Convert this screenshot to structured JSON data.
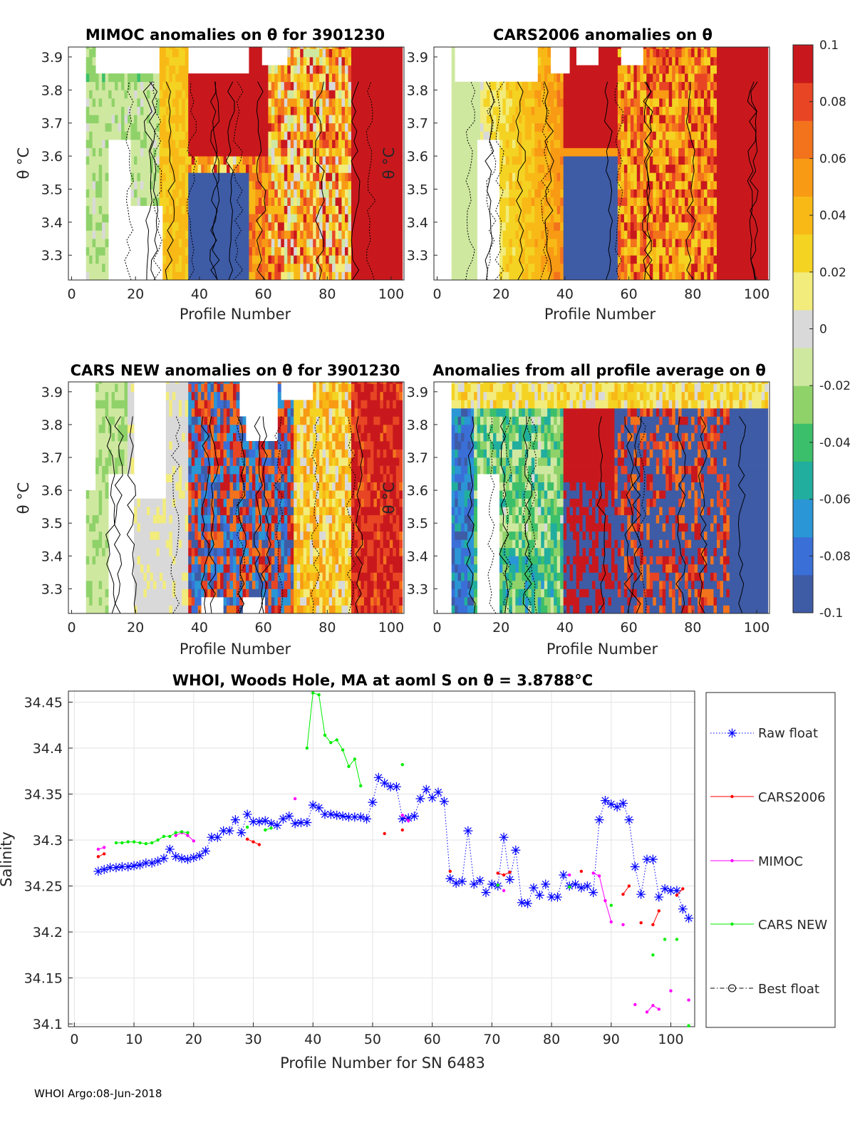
{
  "footer": "WHOI Argo:08-Jun-2018",
  "colorbar": {
    "ticks": [
      "0.1",
      "0.08",
      "0.06",
      "0.04",
      "0.02",
      "0",
      "-0.02",
      "-0.04",
      "-0.06",
      "-0.08",
      "-0.1"
    ],
    "clim": [
      -0.1,
      0.1
    ],
    "colors": [
      "#3e5ba6",
      "#3a6fd8",
      "#2a96d6",
      "#21ae9e",
      "#3cbf6a",
      "#8fd26a",
      "#cfe8a0",
      "#d9d9d9",
      "#f2ec7c",
      "#f4d323",
      "#f8b917",
      "#f89a14",
      "#f3731d",
      "#e84524",
      "#c9181d"
    ]
  },
  "chart_data": [
    {
      "type": "heatmap",
      "title": "MIMOC anomalies on θ  for 3901230",
      "xlabel": "Profile Number",
      "ylabel": "θ °C",
      "xlim": [
        -1,
        104
      ],
      "ylim": [
        3.225,
        3.93
      ],
      "xticks": [
        0,
        20,
        40,
        60,
        80,
        100
      ],
      "yticks": [
        3.3,
        3.4,
        3.5,
        3.6,
        3.7,
        3.8,
        3.9
      ],
      "variant": "mimoc",
      "seed": 11
    },
    {
      "type": "heatmap",
      "title": "CARS2006 anomalies on θ",
      "xlabel": "Profile Number",
      "ylabel": "θ °C",
      "xlim": [
        -1,
        104
      ],
      "ylim": [
        3.225,
        3.93
      ],
      "xticks": [
        0,
        20,
        40,
        60,
        80,
        100
      ],
      "yticks": [
        3.3,
        3.4,
        3.5,
        3.6,
        3.7,
        3.8,
        3.9
      ],
      "variant": "cars2006",
      "seed": 23
    },
    {
      "type": "heatmap",
      "title": "CARS NEW anomalies on θ for 3901230",
      "xlabel": "Profile Number",
      "ylabel": "θ °C",
      "xlim": [
        -1,
        104
      ],
      "ylim": [
        3.225,
        3.93
      ],
      "xticks": [
        0,
        20,
        40,
        60,
        80,
        100
      ],
      "yticks": [
        3.3,
        3.4,
        3.5,
        3.6,
        3.7,
        3.8,
        3.9
      ],
      "variant": "carsnew",
      "seed": 37
    },
    {
      "type": "heatmap",
      "title": "Anomalies from all profile average on θ",
      "xlabel": "Profile Number",
      "ylabel": "θ °C",
      "xlim": [
        -1,
        104
      ],
      "ylim": [
        3.225,
        3.93
      ],
      "xticks": [
        0,
        20,
        40,
        60,
        80,
        100
      ],
      "yticks": [
        3.3,
        3.4,
        3.5,
        3.6,
        3.7,
        3.8,
        3.9
      ],
      "variant": "allavg",
      "seed": 53
    },
    {
      "type": "line",
      "title": "WHOI, Woods Hole, MA at aoml S on θ = 3.8788°C",
      "xlabel": "Profile Number for SN 6483",
      "ylabel": "Salinity",
      "xlim": [
        -1,
        104
      ],
      "ylim": [
        34.097,
        34.462
      ],
      "xticks": [
        0,
        10,
        20,
        30,
        40,
        50,
        60,
        70,
        80,
        90,
        100
      ],
      "yticks": [
        34.1,
        34.15,
        34.2,
        34.25,
        34.3,
        34.35,
        34.4,
        34.45
      ],
      "legend": [
        "Raw float",
        "CARS2006",
        "MIMOC",
        "CARS NEW",
        "Best float"
      ],
      "series": [
        {
          "name": "Raw float",
          "x": [
            4,
            5,
            6,
            7,
            8,
            9,
            10,
            11,
            12,
            13,
            14,
            15,
            16,
            17,
            18,
            19,
            20,
            21,
            22,
            23,
            24,
            25,
            26,
            27,
            28,
            29,
            30,
            31,
            32,
            33,
            34,
            35,
            36,
            37,
            38,
            39,
            40,
            41,
            42,
            43,
            44,
            45,
            46,
            47,
            48,
            49,
            50,
            51,
            52,
            53,
            54,
            55,
            56,
            57,
            58,
            59,
            60,
            61,
            62,
            63,
            64,
            65,
            66,
            67,
            68,
            69,
            70,
            71,
            72,
            73,
            74,
            75,
            76,
            77,
            78,
            79,
            80,
            81,
            82,
            83,
            84,
            85,
            86,
            87,
            88,
            89,
            90,
            91,
            92,
            93,
            94,
            95,
            96,
            97,
            98,
            99,
            100,
            101,
            102,
            103
          ],
          "y": [
            34.266,
            34.268,
            34.27,
            34.27,
            34.271,
            34.271,
            34.272,
            34.273,
            34.275,
            34.275,
            34.277,
            34.28,
            34.29,
            34.282,
            34.28,
            34.279,
            34.281,
            34.283,
            34.288,
            34.303,
            34.303,
            34.31,
            34.31,
            34.322,
            34.308,
            34.328,
            34.32,
            34.32,
            34.321,
            34.318,
            34.316,
            34.323,
            34.326,
            34.318,
            34.319,
            34.319,
            34.338,
            34.335,
            34.328,
            34.328,
            34.327,
            34.326,
            34.325,
            34.325,
            34.325,
            34.323,
            34.341,
            34.368,
            34.362,
            34.358,
            34.358,
            34.323,
            34.324,
            34.326,
            34.345,
            34.355,
            34.346,
            34.352,
            34.342,
            34.258,
            34.253,
            34.255,
            34.31,
            34.252,
            34.256,
            34.243,
            34.252,
            34.25,
            34.303,
            34.257,
            34.289,
            34.232,
            34.231,
            34.248,
            34.24,
            34.252,
            34.238,
            34.238,
            34.262,
            34.25,
            34.252,
            34.248,
            34.25,
            34.243,
            34.322,
            34.343,
            34.339,
            34.336,
            34.34,
            34.322,
            34.271,
            34.241,
            34.279,
            34.279,
            34.238,
            34.247,
            34.245,
            34.245,
            34.225,
            34.215
          ]
        },
        {
          "name": "CARS2006",
          "x": [
            4,
            5,
            null,
            29,
            30,
            31,
            null,
            52,
            null,
            55,
            null,
            63,
            null,
            71,
            72,
            73,
            null,
            85,
            null,
            92,
            93,
            null,
            95,
            null,
            97,
            98,
            null,
            101,
            102
          ],
          "y": [
            34.282,
            34.285,
            null,
            34.301,
            34.298,
            34.295,
            null,
            34.307,
            null,
            34.311,
            null,
            34.266,
            null,
            34.264,
            34.262,
            34.265,
            null,
            34.266,
            null,
            34.241,
            34.25,
            null,
            34.21,
            null,
            34.208,
            34.223,
            null,
            34.24,
            34.247
          ]
        },
        {
          "name": "MIMOC",
          "x": [
            4,
            5,
            null,
            17,
            18,
            19,
            20,
            null,
            37,
            null,
            55,
            56,
            null,
            72,
            null,
            83,
            null,
            87,
            88,
            89,
            90,
            null,
            92,
            null,
            94,
            null,
            96,
            97,
            98,
            null,
            100,
            null,
            103
          ],
          "y": [
            34.29,
            34.292,
            null,
            34.305,
            34.308,
            34.305,
            34.299,
            null,
            34.345,
            null,
            34.327,
            34.321,
            null,
            34.245,
            null,
            34.262,
            null,
            34.264,
            34.261,
            34.234,
            34.211,
            null,
            34.208,
            null,
            34.121,
            null,
            34.113,
            34.12,
            34.116,
            null,
            34.136,
            null,
            34.126
          ]
        },
        {
          "name": "CARS NEW",
          "x": [
            7,
            8,
            9,
            10,
            11,
            12,
            13,
            14,
            15,
            16,
            17,
            18,
            19,
            null,
            29,
            null,
            32,
            33,
            null,
            39,
            40,
            41,
            42,
            43,
            44,
            45,
            46,
            47,
            48,
            null,
            55,
            null,
            71,
            null,
            83,
            null,
            90,
            null,
            97,
            null,
            99,
            null,
            101,
            null,
            103
          ],
          "y": [
            34.297,
            34.297,
            34.298,
            34.298,
            34.297,
            34.296,
            34.297,
            34.3,
            34.304,
            34.304,
            34.308,
            34.309,
            34.308,
            null,
            34.314,
            null,
            34.311,
            34.313,
            null,
            34.4,
            34.46,
            34.458,
            34.414,
            34.406,
            34.409,
            34.398,
            34.38,
            34.388,
            34.359,
            null,
            34.382,
            null,
            34.251,
            null,
            34.249,
            null,
            34.229,
            null,
            34.175,
            null,
            34.192,
            null,
            34.192,
            null,
            34.098
          ]
        },
        {
          "name": "Best float",
          "x": [],
          "y": []
        }
      ]
    }
  ]
}
